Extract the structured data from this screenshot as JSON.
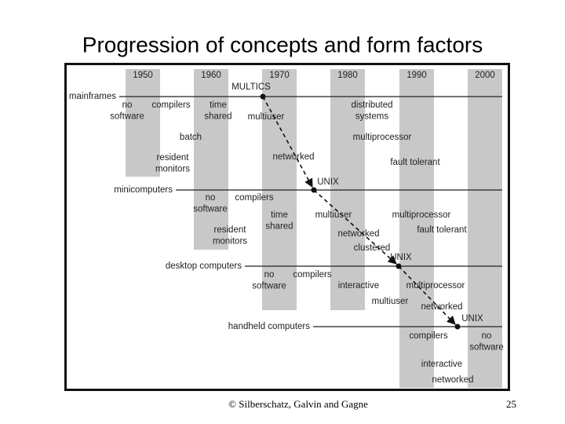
{
  "header": {
    "title": "Progression of concepts and form factors"
  },
  "decades": [
    "1950",
    "1960",
    "1970",
    "1980",
    "1990",
    "2000"
  ],
  "rows": [
    "mainframes",
    "minicomputers",
    "desktop computers",
    "handheld computers"
  ],
  "milestones": [
    "MULTICS",
    "UNIX",
    "UNIX",
    "UNIX"
  ],
  "items": [
    {
      "lines": [
        "no",
        "software"
      ]
    },
    {
      "lines": [
        "compilers"
      ]
    },
    {
      "lines": [
        "time",
        "shared"
      ]
    },
    {
      "lines": [
        "multiuser"
      ]
    },
    {
      "lines": [
        "distributed",
        "systems"
      ]
    },
    {
      "lines": [
        "batch"
      ]
    },
    {
      "lines": [
        "multiprocessor"
      ]
    },
    {
      "lines": [
        "networked"
      ]
    },
    {
      "lines": [
        "resident",
        "monitors"
      ]
    },
    {
      "lines": [
        "fault tolerant"
      ]
    },
    {
      "lines": [
        "no",
        "software"
      ]
    },
    {
      "lines": [
        "compilers"
      ]
    },
    {
      "lines": [
        "time",
        "shared"
      ]
    },
    {
      "lines": [
        "multiuser"
      ]
    },
    {
      "lines": [
        "multiprocessor"
      ]
    },
    {
      "lines": [
        "resident",
        "monitors"
      ]
    },
    {
      "lines": [
        "networked"
      ]
    },
    {
      "lines": [
        "fault tolerant"
      ]
    },
    {
      "lines": [
        "clustered"
      ]
    },
    {
      "lines": [
        "no",
        "software"
      ]
    },
    {
      "lines": [
        "compilers"
      ]
    },
    {
      "lines": [
        "interactive"
      ]
    },
    {
      "lines": [
        "multiprocessor"
      ]
    },
    {
      "lines": [
        "multiuser"
      ]
    },
    {
      "lines": [
        "networked"
      ]
    },
    {
      "lines": [
        "compilers"
      ]
    },
    {
      "lines": [
        "no",
        "software"
      ]
    },
    {
      "lines": [
        "interactive"
      ]
    },
    {
      "lines": [
        "networked"
      ]
    }
  ],
  "footer": {
    "copyright": "© Silberschatz, Galvin and Gagne",
    "page": "25"
  }
}
